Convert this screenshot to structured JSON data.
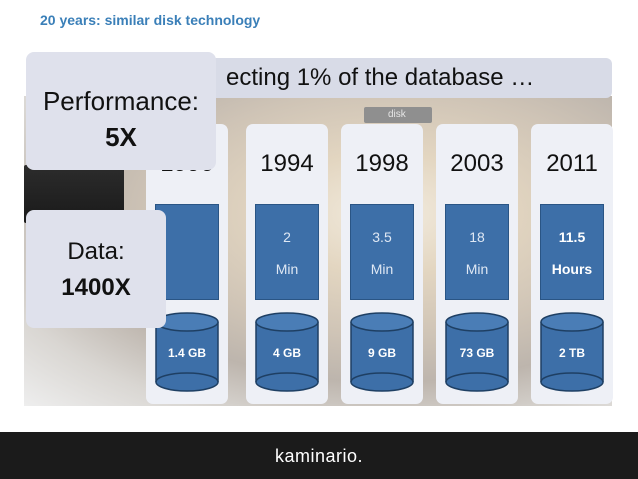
{
  "title": "20 years: similar disk technology",
  "banner_text": "ecting 1% of the database …",
  "disk_label": "disk",
  "columns": [
    {
      "year": "1990",
      "value": "",
      "unit": "",
      "capacity": "1.4 GB",
      "bold": false
    },
    {
      "year": "1994",
      "value": "2",
      "unit": "Min",
      "capacity": "4 GB",
      "bold": false
    },
    {
      "year": "1998",
      "value": "3.5",
      "unit": "Min",
      "capacity": "9 GB",
      "bold": false
    },
    {
      "year": "2003",
      "value": "18",
      "unit": "Min",
      "capacity": "73 GB",
      "bold": false
    },
    {
      "year": "2011",
      "value": "11.5",
      "unit": "Hours",
      "capacity": "2 TB",
      "bold": true
    }
  ],
  "callout_performance": {
    "label": "Performance:",
    "value": "5X"
  },
  "callout_data": {
    "label": "Data:",
    "value": "1400X"
  },
  "footer_brand": "kaminario.",
  "colors": {
    "title": "#3a7fb8",
    "box": "#3d6fa8",
    "footer": "#1b1b1b"
  }
}
